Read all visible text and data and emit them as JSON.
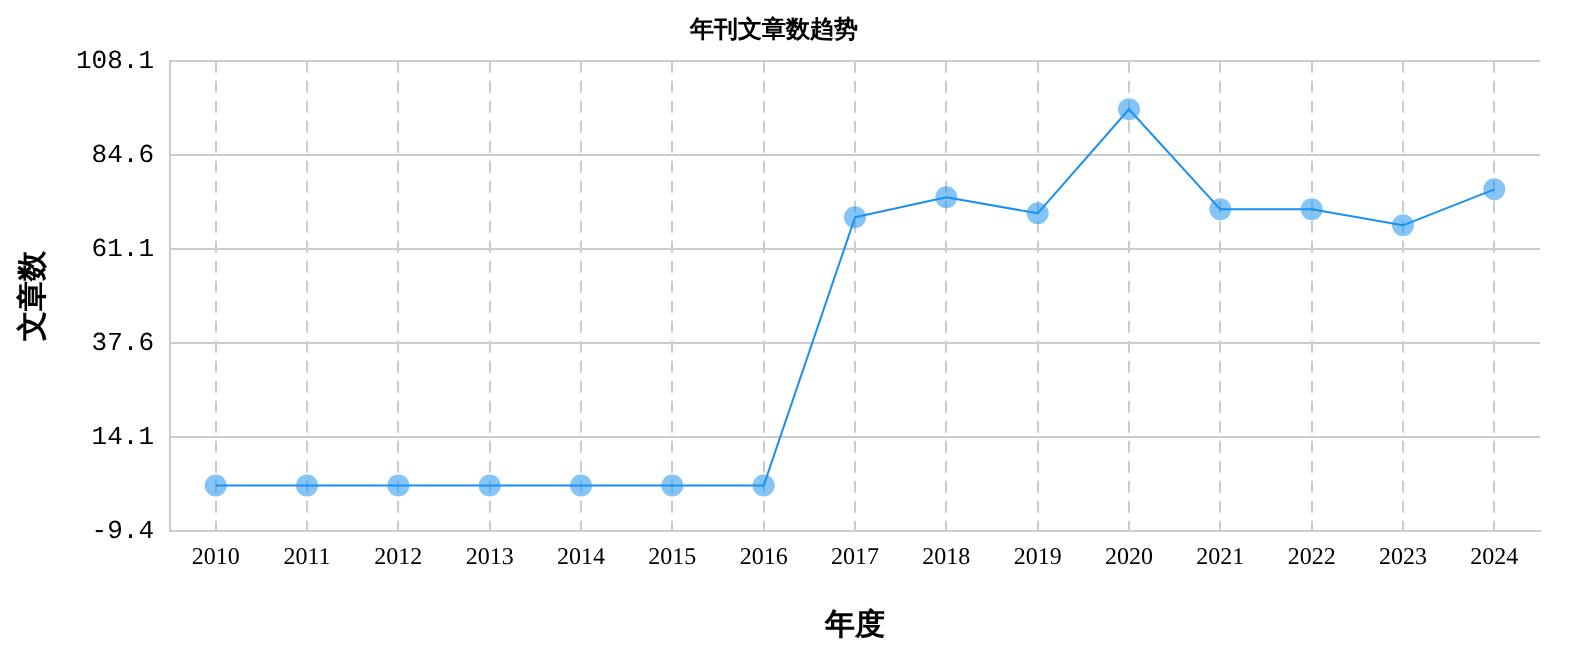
{
  "chart_data": {
    "type": "line",
    "title": "年刊文章数趋势",
    "xlabel": "年度",
    "ylabel": "文章数",
    "categories": [
      "2010",
      "2011",
      "2012",
      "2013",
      "2014",
      "2015",
      "2016",
      "2017",
      "2018",
      "2019",
      "2020",
      "2021",
      "2022",
      "2023",
      "2024"
    ],
    "series": [
      {
        "color": "#1a90f0",
        "values": [
          2,
          2,
          2,
          2,
          2,
          2,
          2,
          69,
          74,
          70,
          96,
          71,
          71,
          67,
          76
        ]
      }
    ],
    "ylim": [
      -9.4,
      108.1
    ],
    "yticks": [
      -9.4,
      14.1,
      37.6,
      61.1,
      84.6,
      108.1
    ],
    "grid": true,
    "legend": false,
    "marker": "circle",
    "line_style": "solid"
  }
}
